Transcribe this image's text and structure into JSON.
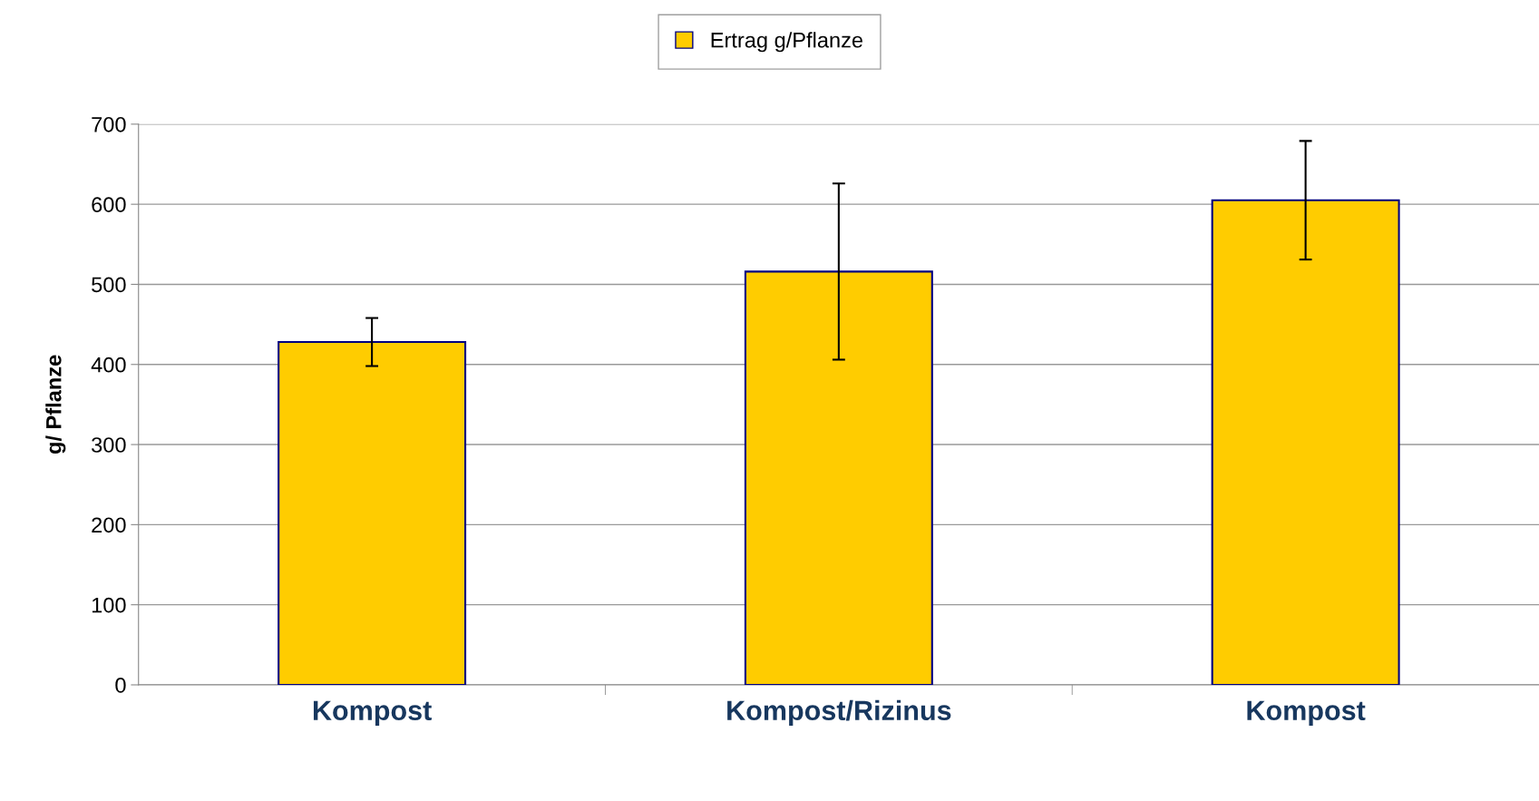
{
  "chart_data": {
    "type": "bar",
    "ylabel": "g/ Pflanze",
    "categories": [
      "Kompost",
      "Kompost/Rizinus",
      "Kompost"
    ],
    "series": [
      {
        "name": "Ertrag g/Pflanze",
        "color": "#ffcc00",
        "values": [
          428,
          516,
          605
        ],
        "errors": [
          30,
          110,
          74
        ]
      }
    ],
    "ylim": [
      0,
      700
    ],
    "yticks": [
      0,
      100,
      200,
      300,
      400,
      500,
      600,
      700
    ],
    "grid": "y",
    "legend": "top"
  }
}
